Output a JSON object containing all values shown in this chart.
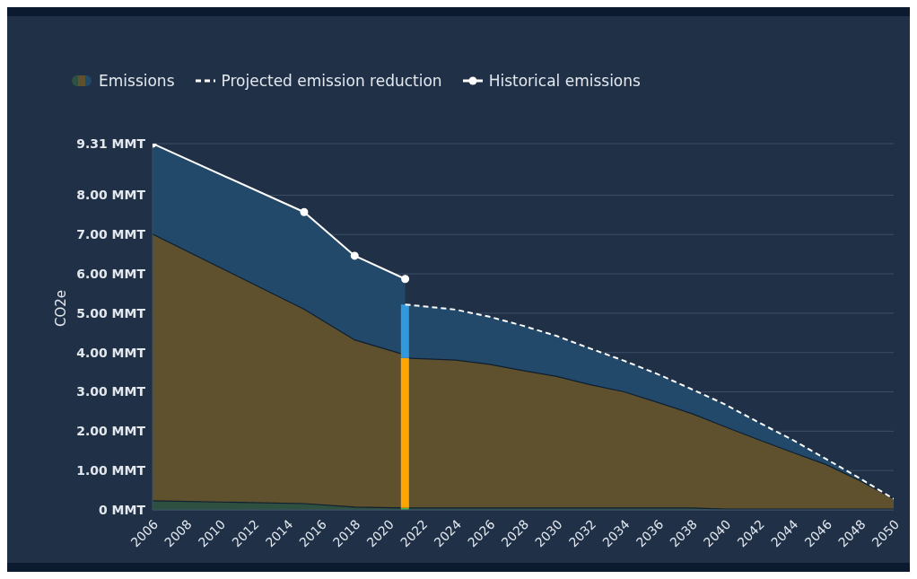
{
  "chart_data": {
    "type": "area",
    "ylabel": "CO2e",
    "grid": "y",
    "legend": "top left",
    "xlim": [
      2006,
      2050
    ],
    "xticks": [
      2006,
      2008,
      2010,
      2012,
      2014,
      2016,
      2018,
      2020,
      2022,
      2024,
      2026,
      2028,
      2030,
      2032,
      2034,
      2036,
      2038,
      2040,
      2042,
      2044,
      2046,
      2048,
      2050
    ],
    "ylim": [
      0,
      9.31
    ],
    "yticks": [
      {
        "value": 0,
        "label": "0 MMT"
      },
      {
        "value": 1,
        "label": "1.00 MMT"
      },
      {
        "value": 2,
        "label": "2.00 MMT"
      },
      {
        "value": 3,
        "label": "3.00 MMT"
      },
      {
        "value": 4,
        "label": "4.00 MMT"
      },
      {
        "value": 5,
        "label": "5.00 MMT"
      },
      {
        "value": 6,
        "label": "6.00 MMT"
      },
      {
        "value": 7,
        "label": "7.00 MMT"
      },
      {
        "value": 8,
        "label": "8.00 MMT"
      },
      {
        "value": 9.31,
        "label": "9.31 MMT"
      }
    ],
    "series": [
      {
        "name": "Emissions",
        "color": "#5f512e",
        "x": [
          2006,
          2015,
          2018,
          2021
        ],
        "values": [
          7.01,
          5.1,
          4.32,
          3.94
        ]
      },
      {
        "color": "#2d5040",
        "x": [
          2006,
          2015,
          2018,
          2021
        ],
        "values": [
          0.23,
          0.16,
          0.07,
          0.05
        ]
      },
      {
        "color": "#5f512e",
        "x": [
          2021,
          2024,
          2026,
          2028,
          2030,
          2032,
          2034,
          2036,
          2038,
          2040,
          2042,
          2044,
          2046,
          2048,
          2050
        ],
        "values": [
          3.86,
          3.81,
          3.7,
          3.54,
          3.39,
          3.18,
          3.0,
          2.73,
          2.45,
          2.11,
          1.78,
          1.46,
          1.15,
          0.74,
          0.28
        ]
      },
      {
        "color": "#2d5040",
        "x": [
          2021,
          2024,
          2026,
          2028,
          2030,
          2032,
          2034,
          2036,
          2038,
          2040,
          2042,
          2044,
          2046,
          2048,
          2050
        ],
        "values": [
          0.05,
          0.05,
          0.05,
          0.05,
          0.05,
          0.05,
          0.05,
          0.05,
          0.05,
          0.02,
          0.02,
          0.02,
          0.02,
          0.02,
          0.02
        ]
      },
      {
        "type": "bar",
        "color": "#4caf50",
        "x": [
          2021
        ],
        "base": [
          0
        ],
        "values": [
          0.05
        ]
      },
      {
        "type": "bar",
        "color": "#ffa500",
        "x": [
          2021
        ],
        "base": [
          0.05
        ],
        "values": [
          3.81
        ]
      },
      {
        "type": "bar",
        "color": "#3399dd",
        "x": [
          2021
        ],
        "base": [
          3.86
        ],
        "values": [
          1.36
        ]
      },
      {
        "type": "line",
        "name": "Projected emission reduction",
        "color": "#ffffff",
        "line_style": "dashed",
        "marker": "none",
        "x": [
          2021,
          2024,
          2026,
          2028,
          2030,
          2032,
          2034,
          2036,
          2038,
          2040,
          2042,
          2044,
          2046,
          2048,
          2050
        ],
        "values": [
          5.22,
          5.09,
          4.91,
          4.68,
          4.42,
          4.1,
          3.79,
          3.45,
          3.07,
          2.68,
          2.22,
          1.78,
          1.29,
          0.8,
          0.28
        ],
        "lower": [
          3.86,
          3.81,
          3.7,
          3.54,
          3.39,
          3.18,
          3.0,
          2.73,
          2.45,
          2.11,
          1.78,
          1.46,
          1.15,
          0.74,
          0.28
        ],
        "upper": [
          5.22,
          5.09,
          4.91,
          4.68,
          4.42,
          4.1,
          3.79,
          3.45,
          3.07,
          2.68,
          2.22,
          1.78,
          1.29,
          0.8,
          0.28
        ]
      },
      {
        "type": "line",
        "name": "Historical emissions",
        "color": "#ffffff",
        "line_style": "solid",
        "marker": "circle",
        "x": [
          2006,
          2015,
          2018,
          2021
        ],
        "values": [
          9.31,
          7.57,
          6.46,
          5.87
        ],
        "lower": [
          7.01,
          5.1,
          4.32,
          3.94
        ],
        "upper": [
          9.31,
          7.57,
          6.46,
          5.87
        ]
      }
    ]
  }
}
